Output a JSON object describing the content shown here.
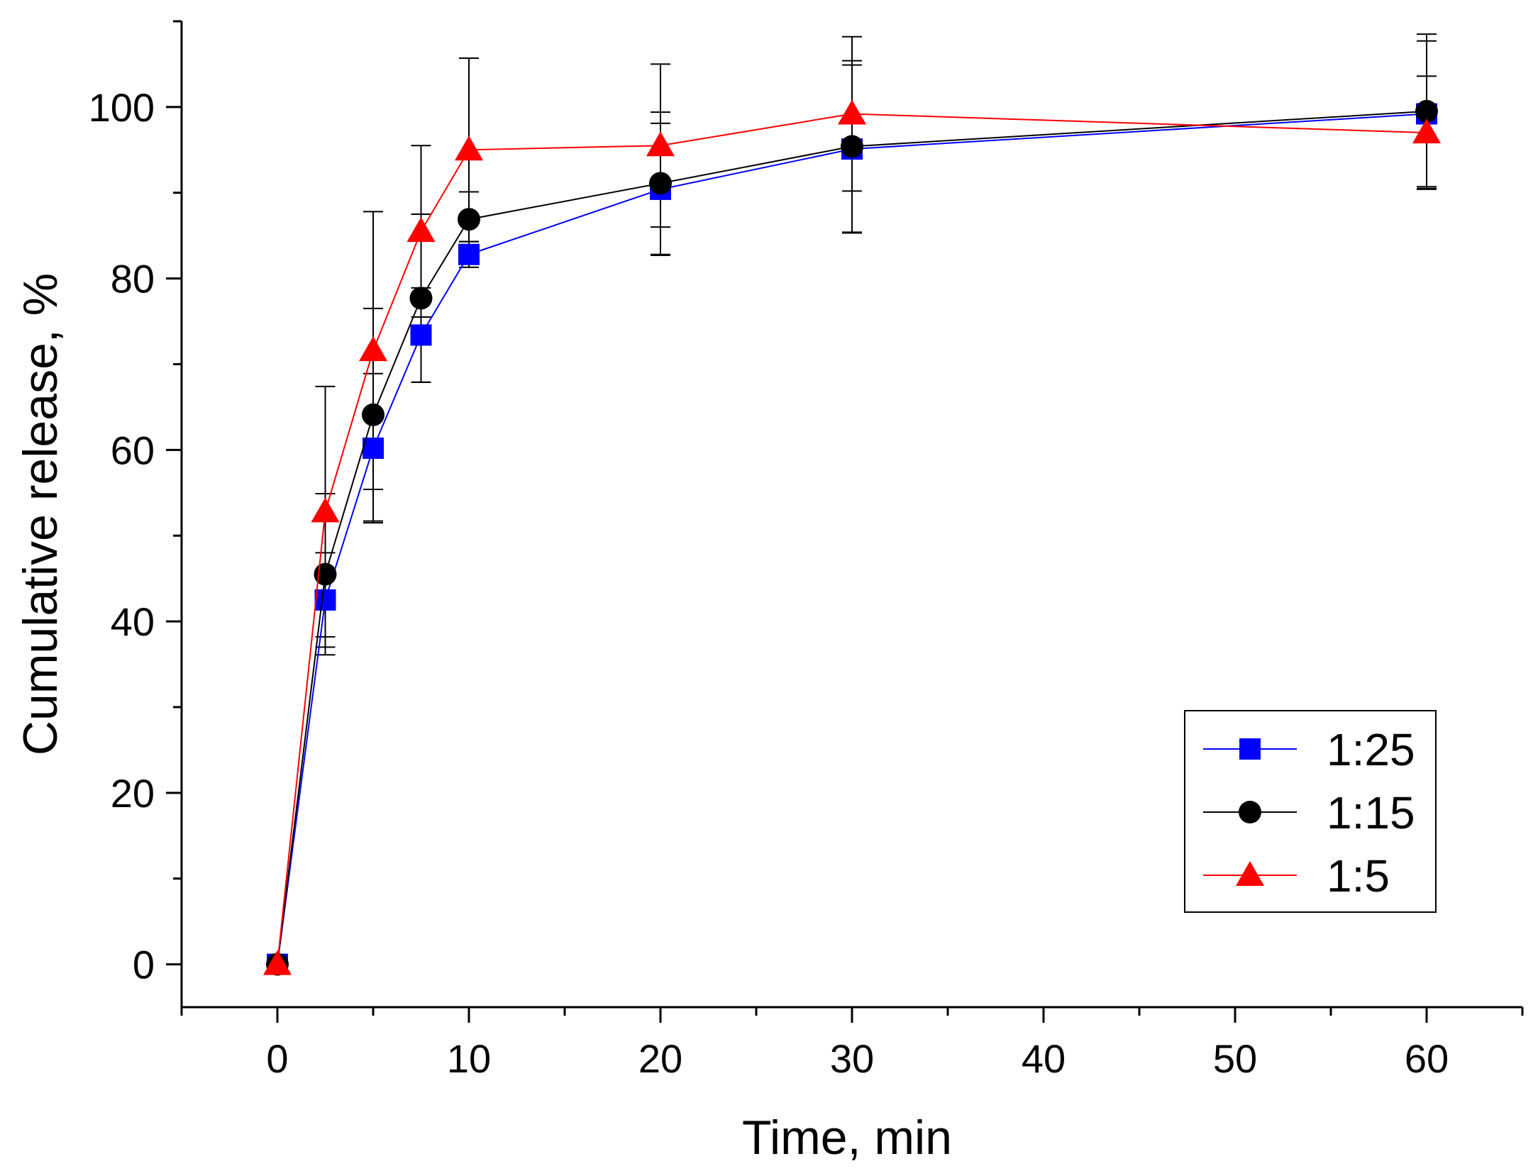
{
  "chart_data": {
    "type": "line",
    "xlabel": "Time, min",
    "ylabel": "Cumulative release, %",
    "xlim": [
      -5,
      65
    ],
    "ylim": [
      -5,
      110
    ],
    "x_ticks": [
      0,
      10,
      20,
      30,
      40,
      50,
      60
    ],
    "x_tick_labels": [
      "0",
      "10",
      "20",
      "30",
      "40",
      "50",
      "60"
    ],
    "y_ticks": [
      0,
      20,
      40,
      60,
      80,
      100
    ],
    "y_tick_labels": [
      "0",
      "20",
      "40",
      "60",
      "80",
      "100"
    ],
    "legend_position": "bottom-right",
    "x": [
      0,
      2.5,
      5,
      7.5,
      10,
      20,
      30,
      60
    ],
    "series": [
      {
        "name": "1:25",
        "color": "#0000ff",
        "marker": "square",
        "values": [
          0,
          42.5,
          60.2,
          73.4,
          82.8,
          90.4,
          95.1,
          99.2
        ],
        "errors": [
          0,
          5.5,
          8.7,
          5.5,
          1.5,
          7.7,
          9.8,
          8.5
        ]
      },
      {
        "name": "1:15",
        "color": "#000000",
        "marker": "circle",
        "values": [
          0,
          45.5,
          64.1,
          77.7,
          86.9,
          91.1,
          95.4,
          99.5
        ],
        "errors": [
          0,
          9.4,
          12.4,
          9.8,
          3.2,
          8.3,
          10.0,
          9.0
        ]
      },
      {
        "name": "1:5",
        "color": "#ff0000",
        "marker": "triangle",
        "values": [
          0,
          52.8,
          71.6,
          85.5,
          95.0,
          95.5,
          99.2,
          97.0
        ],
        "errors": [
          0,
          14.6,
          16.2,
          10.0,
          10.7,
          9.5,
          9.0,
          6.6
        ]
      }
    ]
  }
}
